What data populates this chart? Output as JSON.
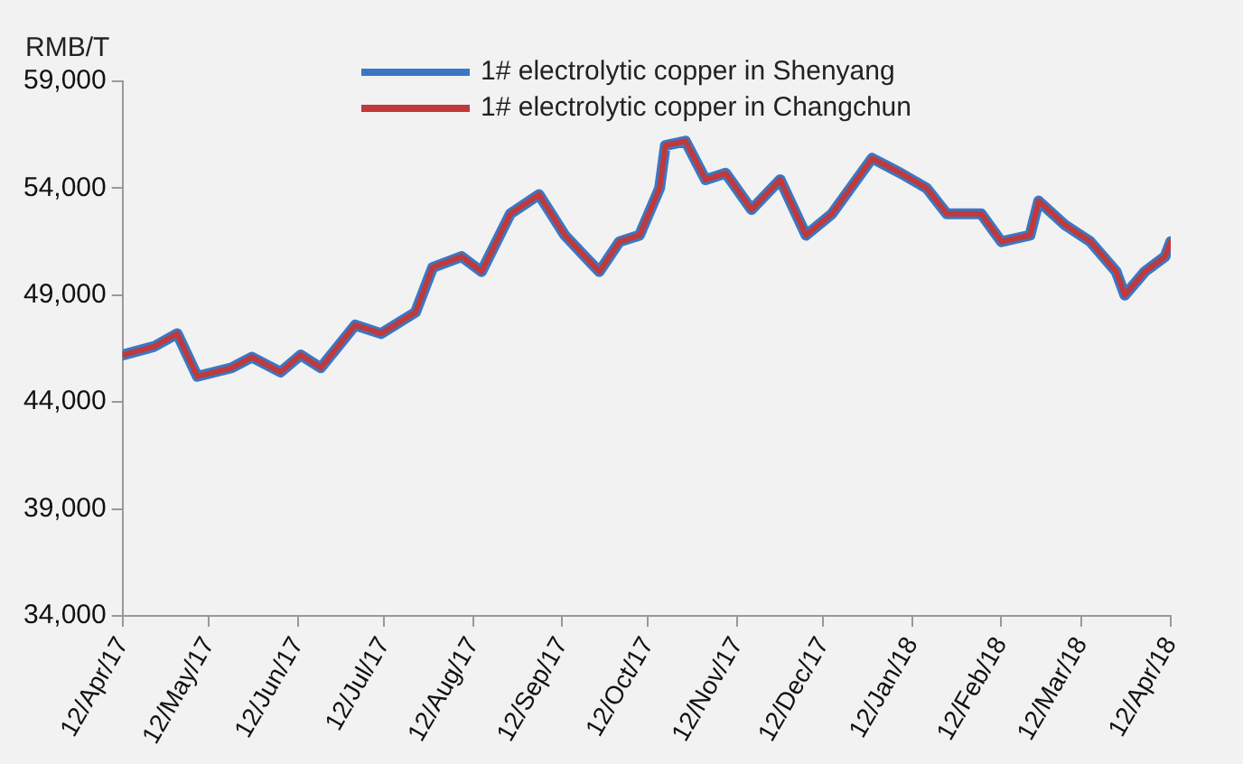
{
  "chart_data": {
    "type": "line",
    "ylabel": "RMB/T",
    "legend": "top",
    "grid": false,
    "marker": "none",
    "line_style": "solid",
    "x": [
      "2017-04-12",
      "2017-04-23",
      "2017-05-01",
      "2017-05-08",
      "2017-05-20",
      "2017-05-27",
      "2017-06-06",
      "2017-06-13",
      "2017-06-20",
      "2017-07-02",
      "2017-07-11",
      "2017-07-23",
      "2017-07-29",
      "2017-08-08",
      "2017-08-15",
      "2017-08-25",
      "2017-09-04",
      "2017-09-13",
      "2017-09-20",
      "2017-09-25",
      "2017-10-02",
      "2017-10-09",
      "2017-10-16",
      "2017-10-18",
      "2017-10-25",
      "2017-11-01",
      "2017-11-08",
      "2017-11-17",
      "2017-11-27",
      "2017-12-06",
      "2017-12-15",
      "2017-12-29",
      "2018-01-08",
      "2018-01-17",
      "2018-01-24",
      "2018-02-05",
      "2018-02-12",
      "2018-02-22",
      "2018-02-25",
      "2018-03-06",
      "2018-03-15",
      "2018-03-24",
      "2018-03-27",
      "2018-04-03",
      "2018-04-10",
      "2018-04-12"
    ],
    "series": [
      {
        "name": "1# electrolytic copper in Shenyang",
        "color": "#3a78c4",
        "values": [
          46200,
          46600,
          47200,
          45200,
          45600,
          46100,
          45400,
          46200,
          45600,
          47600,
          47200,
          48200,
          50300,
          50800,
          50100,
          52800,
          53700,
          51800,
          50800,
          50100,
          51500,
          51800,
          54000,
          56000,
          56200,
          54400,
          54700,
          53000,
          54400,
          51800,
          52800,
          55400,
          54700,
          54000,
          52800,
          52800,
          51500,
          51800,
          53400,
          52300,
          51500,
          50100,
          49000,
          50100,
          50800,
          51500
        ]
      },
      {
        "name": "1# electrolytic copper in Changchun",
        "color": "#c0393b",
        "values": [
          46200,
          46600,
          47200,
          45200,
          45600,
          46100,
          45400,
          46200,
          45600,
          47600,
          47200,
          48200,
          50300,
          50800,
          50100,
          52800,
          53700,
          51800,
          50800,
          50100,
          51500,
          51800,
          54000,
          56000,
          56200,
          54400,
          54700,
          53000,
          54400,
          51800,
          52800,
          55400,
          54700,
          54000,
          52800,
          52800,
          51500,
          51800,
          53400,
          52300,
          51500,
          50100,
          49000,
          50100,
          50800,
          51500
        ]
      }
    ],
    "xlim": [
      "2017-04-12",
      "2018-04-12"
    ],
    "xticks": [
      {
        "value": "2017-04-12",
        "label": "12/Apr/17"
      },
      {
        "value": "2017-05-12",
        "label": "12/May/17"
      },
      {
        "value": "2017-06-12",
        "label": "12/Jun/17"
      },
      {
        "value": "2017-07-12",
        "label": "12/Jul/17"
      },
      {
        "value": "2017-08-12",
        "label": "12/Aug/17"
      },
      {
        "value": "2017-09-12",
        "label": "12/Sep/17"
      },
      {
        "value": "2017-10-12",
        "label": "12/Oct/17"
      },
      {
        "value": "2017-11-12",
        "label": "12/Nov/17"
      },
      {
        "value": "2017-12-12",
        "label": "12/Dec/17"
      },
      {
        "value": "2018-01-12",
        "label": "12/Jan/18"
      },
      {
        "value": "2018-02-12",
        "label": "12/Feb/18"
      },
      {
        "value": "2018-03-12",
        "label": "12/Mar/18"
      },
      {
        "value": "2018-04-12",
        "label": "12/Apr/18"
      }
    ],
    "ylim": [
      34000,
      59000
    ],
    "yticks": [
      {
        "value": 34000,
        "label": "34,000"
      },
      {
        "value": 39000,
        "label": "39,000"
      },
      {
        "value": 44000,
        "label": "44,000"
      },
      {
        "value": 49000,
        "label": "49,000"
      },
      {
        "value": 54000,
        "label": "54,000"
      },
      {
        "value": 59000,
        "label": "59,000"
      }
    ]
  }
}
